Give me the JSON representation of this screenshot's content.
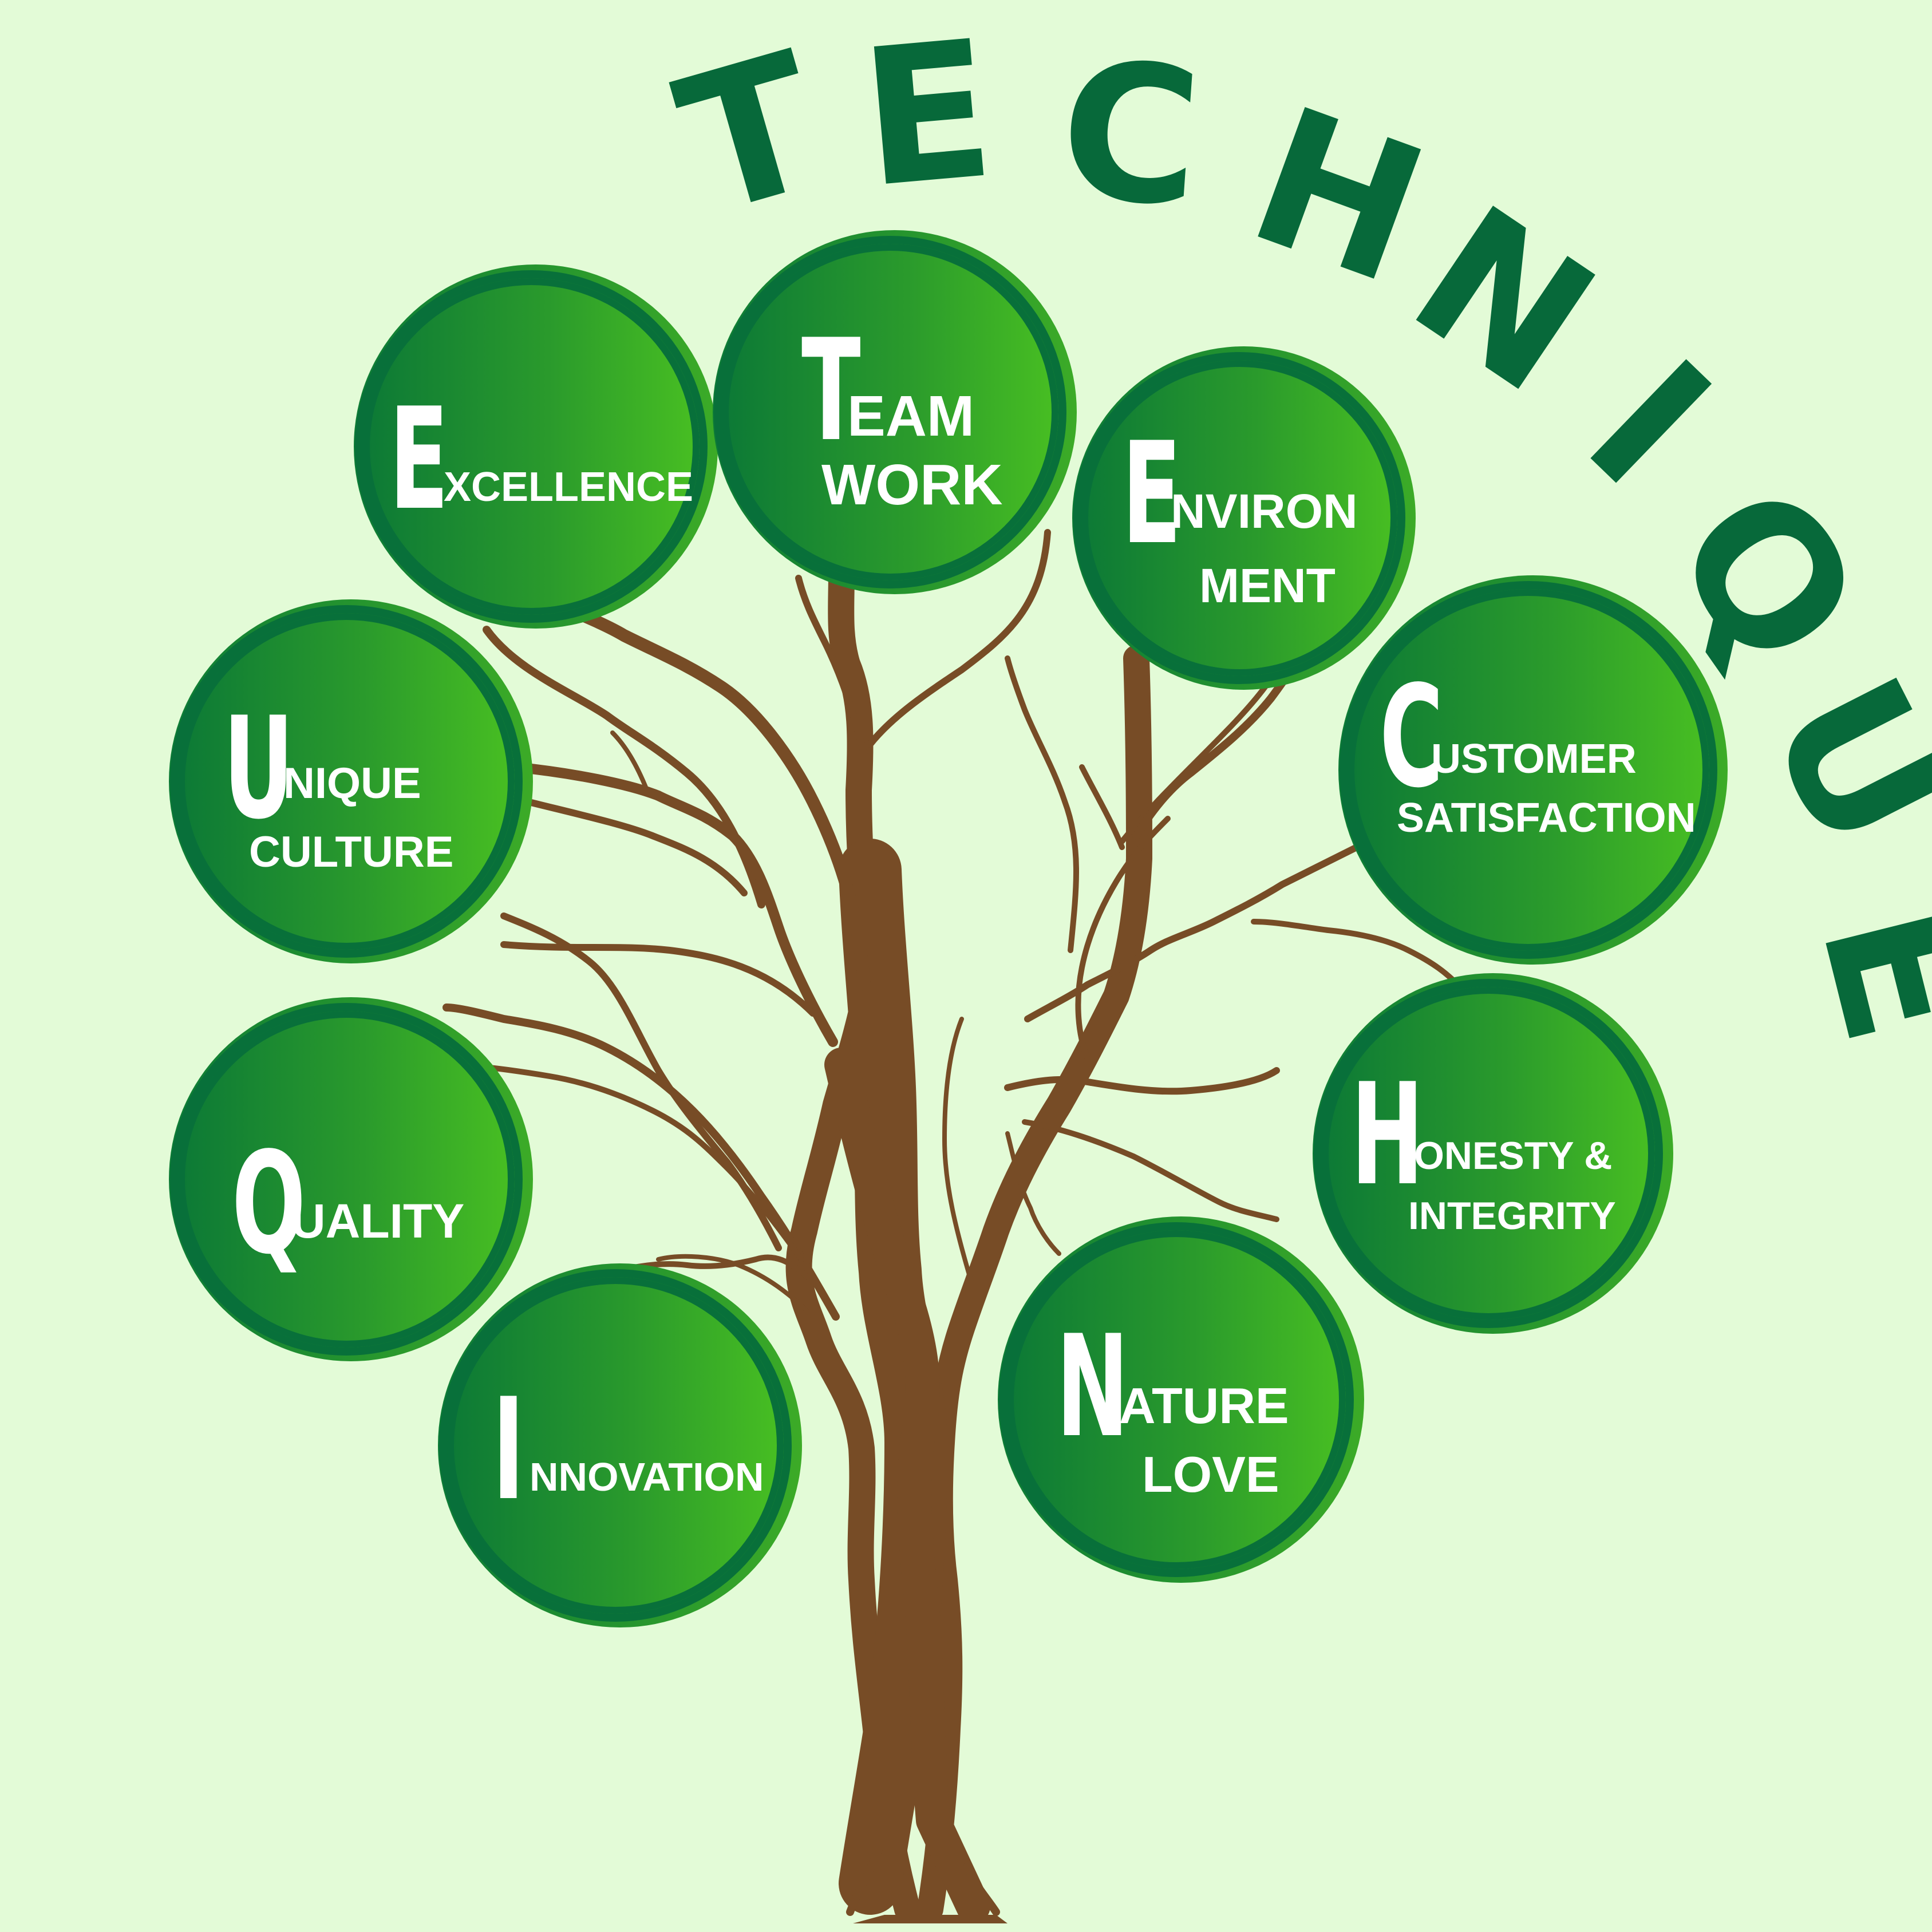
{
  "title": [
    "T",
    "E",
    "C",
    "H",
    "N",
    "I",
    "Q",
    "U",
    "E"
  ],
  "colors": {
    "background": "#e3fbd7",
    "title": "#07693a",
    "trunk": "#774c26",
    "leaf_dark": "#08703a",
    "leaf_light": "#48bf22",
    "text": "#ffffff"
  },
  "nodes": [
    {
      "id": "excellence",
      "initial": "E",
      "line1": "XCELLENCE",
      "line2": ""
    },
    {
      "id": "teamwork",
      "initial": "T",
      "line1": "EAM",
      "line2": "WORK"
    },
    {
      "id": "environment",
      "initial": "E",
      "line1": "NVIRON",
      "line2": "MENT"
    },
    {
      "id": "unique-culture",
      "initial": "U",
      "line1": "NIQUE",
      "line2": "CULTURE"
    },
    {
      "id": "customer-satisfaction",
      "initial": "C",
      "line1": "USTOMER",
      "line2": "SATISFACTION"
    },
    {
      "id": "quality",
      "initial": "Q",
      "line1": "UALITY",
      "line2": ""
    },
    {
      "id": "honesty-integrity",
      "initial": "H",
      "line1": "ONESTY &",
      "line2": "INTEGRITY"
    },
    {
      "id": "innovation",
      "initial": "I",
      "line1": "NNOVATION",
      "line2": ""
    },
    {
      "id": "nature-love",
      "initial": "N",
      "line1": "ATURE",
      "line2": "LOVE"
    }
  ]
}
